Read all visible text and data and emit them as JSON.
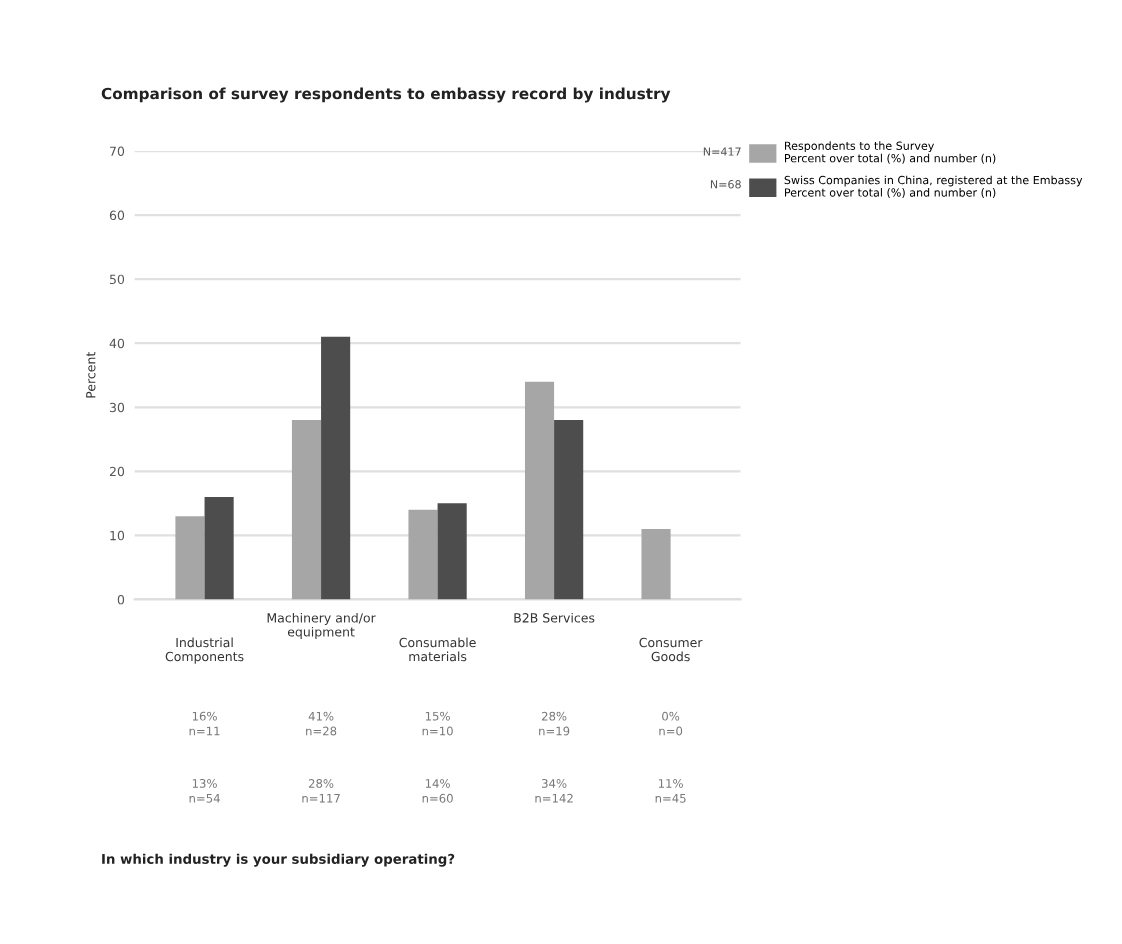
{
  "chart_data": {
    "type": "bar",
    "title": "Comparison of survey respondents to embassy record by industry",
    "categories": [
      "Industrial\nComponents",
      "Machinery and/or\nequipment",
      "Consumable\nmaterials",
      "B2B Services",
      "Consumer\nGoods"
    ],
    "series": [
      {
        "name": "Respondents to the Survey\nPercent over total (%) and number (n)",
        "color": "#a6a6a6",
        "values": [
          13,
          28,
          14,
          34,
          11
        ],
        "value_labels": [
          "13%\nn=54",
          "28%\nn=117",
          "14%\nn=60",
          "34%\nn=142",
          "11%\nn=45"
        ]
      },
      {
        "name": "Swiss Companies in China, registered at the Embassy\nPercent over total (%) and number (n)",
        "color": "#4d4d4d",
        "values": [
          16,
          41,
          15,
          28,
          0
        ],
        "value_labels": [
          "16%\nn=11",
          "41%\nn=28",
          "15%\nn=10",
          "28%\nn=19",
          "0%\nn=0"
        ]
      }
    ],
    "ylabel": "Percent",
    "ylim": [
      0,
      70
    ],
    "yticks": [
      0,
      10,
      20,
      30,
      40,
      50,
      60,
      70
    ],
    "grid": "y",
    "legend": "top right",
    "annotations": [
      "N=417",
      "N=68",
      "In which industry is your subsidiary operating?"
    ]
  }
}
